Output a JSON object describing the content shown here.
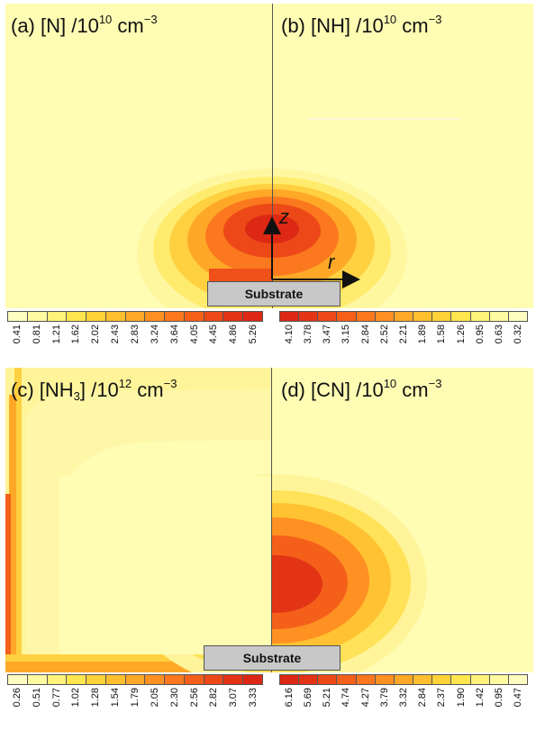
{
  "panels": {
    "a": {
      "prefix": "(a) [N] /10",
      "exp": "10",
      "unit": " cm",
      "unit_exp": "−3"
    },
    "b": {
      "prefix": "(b) [NH] /10",
      "exp": "10",
      "unit": " cm",
      "unit_exp": "−3"
    },
    "c": {
      "prefix": "(c) [NH",
      "sub": "3",
      "mid": "] /10",
      "exp": "12",
      "unit": " cm",
      "unit_exp": "−3"
    },
    "d": {
      "prefix": "(d) [CN] /10",
      "exp": "10",
      "unit": " cm",
      "unit_exp": "−3"
    }
  },
  "substrate_label": "Substrate",
  "axes": {
    "z": "z",
    "r": "r"
  },
  "colorbars": {
    "top_left": [
      "0.41",
      "0.81",
      "1.21",
      "1.62",
      "2.02",
      "2.43",
      "2.83",
      "3.24",
      "3.64",
      "4.05",
      "4.45",
      "4.86",
      "5.26"
    ],
    "top_right": [
      "4.10",
      "3.78",
      "3.47",
      "3.15",
      "2.84",
      "2.52",
      "2.21",
      "1.89",
      "1.58",
      "1.26",
      "0.95",
      "0.63",
      "0.32"
    ],
    "bottom_left": [
      "0.26",
      "0.51",
      "0.77",
      "1.02",
      "1.28",
      "1.54",
      "1.79",
      "2.05",
      "2.30",
      "2.56",
      "2.82",
      "3.07",
      "3.33"
    ],
    "bottom_right": [
      "6.16",
      "5.69",
      "5.21",
      "4.74",
      "4.27",
      "3.79",
      "3.32",
      "2.84",
      "2.37",
      "1.90",
      "1.42",
      "0.95",
      "0.47"
    ]
  },
  "colors": {
    "background": "#fffcb4",
    "scale": [
      "#fffcc0",
      "#fff9a0",
      "#fff37a",
      "#ffe64e",
      "#ffd238",
      "#ffbf2e",
      "#ffa828",
      "#ff9022",
      "#fb781e",
      "#f4601a",
      "#ec4818",
      "#e33416",
      "#dc2814"
    ]
  }
}
